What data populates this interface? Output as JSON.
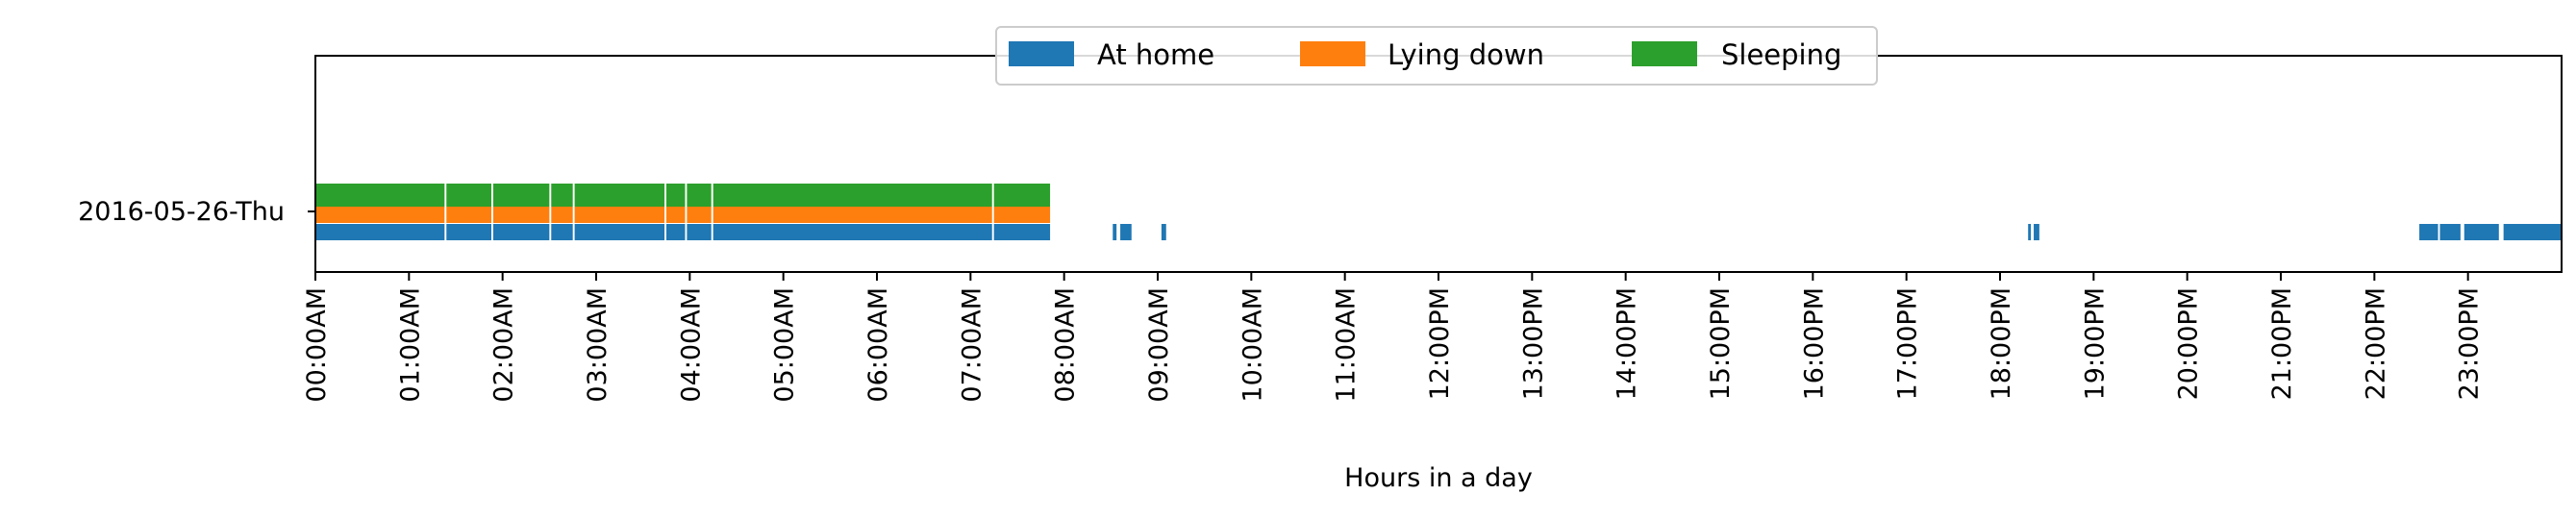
{
  "chart_data": {
    "type": "timeline",
    "title": "",
    "xlabel": "Hours in a day",
    "ylabel": "",
    "xlim_hours": [
      0,
      24
    ],
    "grid": false,
    "legend": {
      "placement": "top-center"
    },
    "y_categories": [
      "2016-05-26-Thu"
    ],
    "x_tick_labels": [
      "00:00AM",
      "01:00AM",
      "02:00AM",
      "03:00AM",
      "04:00AM",
      "05:00AM",
      "06:00AM",
      "07:00AM",
      "08:00AM",
      "09:00AM",
      "10:00AM",
      "11:00AM",
      "12:00PM",
      "13:00PM",
      "14:00PM",
      "15:00PM",
      "16:00PM",
      "17:00PM",
      "18:00PM",
      "19:00PM",
      "20:00PM",
      "21:00PM",
      "22:00PM",
      "23:00PM"
    ],
    "series": [
      {
        "name": "At home",
        "color": "#1f77b4",
        "segments_hours": [
          [
            0.0,
            1.38
          ],
          [
            1.4,
            1.88
          ],
          [
            1.9,
            2.5
          ],
          [
            2.52,
            2.75
          ],
          [
            2.77,
            3.73
          ],
          [
            3.75,
            3.95
          ],
          [
            3.97,
            4.23
          ],
          [
            4.25,
            7.23
          ],
          [
            7.25,
            7.85
          ],
          [
            8.52,
            8.56
          ],
          [
            8.6,
            8.72
          ],
          [
            9.04,
            9.09
          ],
          [
            18.3,
            18.33
          ],
          [
            18.36,
            18.42
          ],
          [
            22.48,
            22.68
          ],
          [
            22.7,
            22.92
          ],
          [
            22.96,
            23.33
          ],
          [
            23.38,
            24.0
          ]
        ]
      },
      {
        "name": "Lying down",
        "color": "#ff7f0e",
        "segments_hours": [
          [
            0.0,
            1.38
          ],
          [
            1.4,
            1.88
          ],
          [
            1.9,
            2.5
          ],
          [
            2.52,
            2.75
          ],
          [
            2.77,
            3.73
          ],
          [
            3.75,
            3.95
          ],
          [
            3.97,
            4.23
          ],
          [
            4.25,
            7.23
          ],
          [
            7.25,
            7.85
          ]
        ]
      },
      {
        "name": "Sleeping",
        "color": "#2ca02c",
        "segments_hours": [
          [
            0.0,
            1.38
          ],
          [
            1.4,
            1.88
          ],
          [
            1.9,
            2.5
          ],
          [
            2.52,
            2.75
          ],
          [
            2.77,
            3.73
          ],
          [
            3.75,
            3.95
          ],
          [
            3.97,
            4.23
          ],
          [
            4.25,
            7.23
          ],
          [
            7.25,
            7.85
          ]
        ]
      }
    ]
  }
}
